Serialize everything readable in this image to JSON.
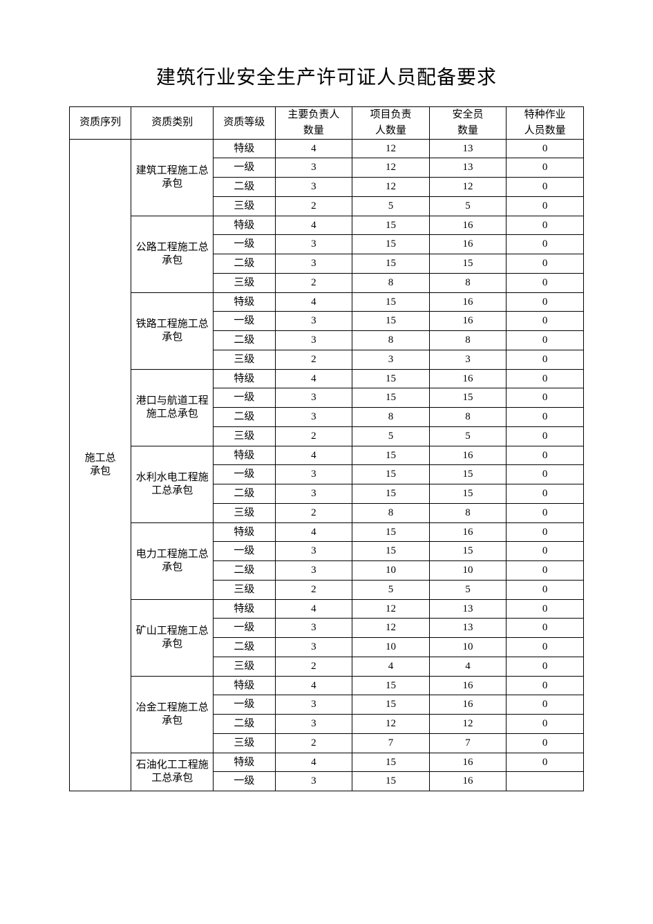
{
  "title": "建筑行业安全生产许可证人员配备要求",
  "headers": {
    "seq": "资质序列",
    "cat": "资质类别",
    "level": "资质等级",
    "c1a": "主要负责人",
    "c1b": "数量",
    "c2a": "项目负责",
    "c2b": "人数量",
    "c3a": "安全员",
    "c3b": "数量",
    "c4a": "特种作业",
    "c4b": "人员数量"
  },
  "sequence_label": "施工总承包",
  "categories": [
    {
      "name": "建筑工程施工总承包",
      "rows": [
        {
          "level": "特级",
          "v": [
            4,
            12,
            13,
            0
          ]
        },
        {
          "level": "一级",
          "v": [
            3,
            12,
            13,
            0
          ]
        },
        {
          "level": "二级",
          "v": [
            3,
            12,
            12,
            0
          ]
        },
        {
          "level": "三级",
          "v": [
            2,
            5,
            5,
            0
          ]
        }
      ]
    },
    {
      "name": "公路工程施工总承包",
      "rows": [
        {
          "level": "特级",
          "v": [
            4,
            15,
            16,
            0
          ]
        },
        {
          "level": "一级",
          "v": [
            3,
            15,
            16,
            0
          ]
        },
        {
          "level": "二级",
          "v": [
            3,
            15,
            15,
            0
          ]
        },
        {
          "level": "三级",
          "v": [
            2,
            8,
            8,
            0
          ]
        }
      ]
    },
    {
      "name": "铁路工程施工总承包",
      "rows": [
        {
          "level": "特级",
          "v": [
            4,
            15,
            16,
            0
          ]
        },
        {
          "level": "一级",
          "v": [
            3,
            15,
            16,
            0
          ]
        },
        {
          "level": "二级",
          "v": [
            3,
            8,
            8,
            0
          ]
        },
        {
          "level": "三级",
          "v": [
            2,
            3,
            3,
            0
          ]
        }
      ]
    },
    {
      "name": "港口与航道工程施工总承包",
      "rows": [
        {
          "level": "特级",
          "v": [
            4,
            15,
            16,
            0
          ]
        },
        {
          "level": "一级",
          "v": [
            3,
            15,
            15,
            0
          ]
        },
        {
          "level": "二级",
          "v": [
            3,
            8,
            8,
            0
          ]
        },
        {
          "level": "三级",
          "v": [
            2,
            5,
            5,
            0
          ]
        }
      ]
    },
    {
      "name": "水利水电工程施工总承包",
      "rows": [
        {
          "level": "特级",
          "v": [
            4,
            15,
            16,
            0
          ]
        },
        {
          "level": "一级",
          "v": [
            3,
            15,
            15,
            0
          ]
        },
        {
          "level": "二级",
          "v": [
            3,
            15,
            15,
            0
          ]
        },
        {
          "level": "三级",
          "v": [
            2,
            8,
            8,
            0
          ]
        }
      ]
    },
    {
      "name": "电力工程施工总承包",
      "rows": [
        {
          "level": "特级",
          "v": [
            4,
            15,
            16,
            0
          ]
        },
        {
          "level": "一级",
          "v": [
            3,
            15,
            15,
            0
          ]
        },
        {
          "level": "二级",
          "v": [
            3,
            10,
            10,
            0
          ]
        },
        {
          "level": "三级",
          "v": [
            2,
            5,
            5,
            0
          ]
        }
      ]
    },
    {
      "name": "矿山工程施工总承包",
      "rows": [
        {
          "level": "特级",
          "v": [
            4,
            12,
            13,
            0
          ]
        },
        {
          "level": "一级",
          "v": [
            3,
            12,
            13,
            0
          ]
        },
        {
          "level": "二级",
          "v": [
            3,
            10,
            10,
            0
          ]
        },
        {
          "level": "三级",
          "v": [
            2,
            4,
            4,
            0
          ]
        }
      ]
    },
    {
      "name": "冶金工程施工总承包",
      "rows": [
        {
          "level": "特级",
          "v": [
            4,
            15,
            16,
            0
          ]
        },
        {
          "level": "一级",
          "v": [
            3,
            15,
            16,
            0
          ]
        },
        {
          "level": "二级",
          "v": [
            3,
            12,
            12,
            0
          ]
        },
        {
          "level": "三级",
          "v": [
            2,
            7,
            7,
            0
          ]
        }
      ]
    },
    {
      "name": "石油化工工程施工总承包",
      "rows": [
        {
          "level": "特级",
          "v": [
            4,
            15,
            16,
            0
          ]
        },
        {
          "level": "一级",
          "v": [
            3,
            15,
            16,
            ""
          ]
        }
      ]
    }
  ]
}
